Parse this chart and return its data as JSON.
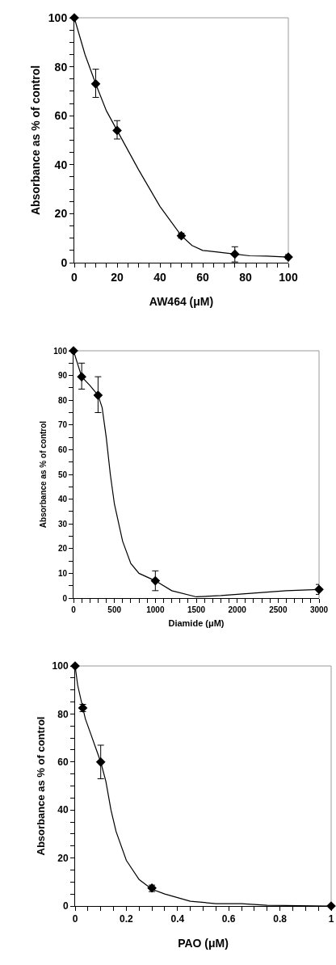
{
  "chart_data": [
    {
      "type": "scatter",
      "xlabel": "AW464 (μM)",
      "ylabel": "Absorbance as % of control",
      "grid": false,
      "xlim": [
        0,
        100
      ],
      "ylim": [
        0,
        100
      ],
      "xticks": [
        0,
        {
          "value": 5,
          "label": null
        },
        {
          "value": 10,
          "label": null
        },
        {
          "value": 15,
          "label": null
        },
        20,
        {
          "value": 25,
          "label": null
        },
        {
          "value": 30,
          "label": null
        },
        {
          "value": 35,
          "label": null
        },
        40,
        {
          "value": 45,
          "label": null
        },
        {
          "value": 50,
          "label": null
        },
        {
          "value": 55,
          "label": null
        },
        60,
        {
          "value": 65,
          "label": null
        },
        {
          "value": 70,
          "label": null
        },
        {
          "value": 75,
          "label": null
        },
        80,
        {
          "value": 85,
          "label": null
        },
        {
          "value": 90,
          "label": null
        },
        {
          "value": 95,
          "label": null
        },
        100
      ],
      "yticks": [
        0,
        {
          "value": 5,
          "label": null
        },
        {
          "value": 10,
          "label": null
        },
        {
          "value": 15,
          "label": null
        },
        20,
        {
          "value": 25,
          "label": null
        },
        {
          "value": 30,
          "label": null
        },
        {
          "value": 35,
          "label": null
        },
        40,
        {
          "value": 45,
          "label": null
        },
        {
          "value": 50,
          "label": null
        },
        {
          "value": 55,
          "label": null
        },
        60,
        {
          "value": 65,
          "label": null
        },
        {
          "value": 70,
          "label": null
        },
        {
          "value": 75,
          "label": null
        },
        80,
        {
          "value": 85,
          "label": null
        },
        {
          "value": 90,
          "label": null
        },
        {
          "value": 95,
          "label": null
        },
        100
      ],
      "series": [
        {
          "marker": "diamond",
          "color": "#000000",
          "x": [
            0,
            10,
            20,
            50,
            75,
            100
          ],
          "values": [
            100,
            73,
            54,
            11,
            3.5,
            2.3
          ],
          "errors": [
            null,
            [
              67.5,
              79
            ],
            [
              50.5,
              58
            ],
            [
              10,
              12
            ],
            [
              0.3,
              6.5
            ],
            [
              1.5,
              3.3
            ]
          ]
        },
        {
          "type": "line",
          "color": "#000000",
          "x": [
            0,
            5,
            10,
            15,
            20,
            30,
            40,
            50,
            55,
            60,
            67,
            75,
            82,
            90,
            100
          ],
          "values": [
            100,
            85,
            73,
            62,
            54,
            38,
            23,
            11,
            7,
            5,
            4.3,
            3.5,
            2.8,
            2.7,
            2.3
          ]
        }
      ]
    },
    {
      "type": "scatter",
      "xlabel": "Diamide (μM)",
      "ylabel": "Absorbance as % of control",
      "grid": false,
      "xlim": [
        0,
        3000
      ],
      "ylim": [
        0,
        100
      ],
      "xticks": [
        0,
        {
          "value": 100,
          "label": null
        },
        {
          "value": 200,
          "label": null
        },
        {
          "value": 300,
          "label": null
        },
        {
          "value": 400,
          "label": null
        },
        500,
        {
          "value": 600,
          "label": null
        },
        {
          "value": 700,
          "label": null
        },
        {
          "value": 800,
          "label": null
        },
        {
          "value": 900,
          "label": null
        },
        1000,
        {
          "value": 1100,
          "label": null
        },
        {
          "value": 1200,
          "label": null
        },
        {
          "value": 1300,
          "label": null
        },
        {
          "value": 1400,
          "label": null
        },
        1500,
        {
          "value": 1600,
          "label": null
        },
        {
          "value": 1700,
          "label": null
        },
        {
          "value": 1800,
          "label": null
        },
        {
          "value": 1900,
          "label": null
        },
        2000,
        {
          "value": 2100,
          "label": null
        },
        {
          "value": 2200,
          "label": null
        },
        {
          "value": 2300,
          "label": null
        },
        {
          "value": 2400,
          "label": null
        },
        2500,
        {
          "value": 2600,
          "label": null
        },
        {
          "value": 2700,
          "label": null
        },
        {
          "value": 2800,
          "label": null
        },
        {
          "value": 2900,
          "label": null
        },
        3000
      ],
      "yticks": [
        0,
        {
          "value": 5,
          "label": null
        },
        10,
        {
          "value": 15,
          "label": null
        },
        20,
        {
          "value": 25,
          "label": null
        },
        30,
        {
          "value": 35,
          "label": null
        },
        40,
        {
          "value": 45,
          "label": null
        },
        50,
        {
          "value": 55,
          "label": null
        },
        60,
        {
          "value": 65,
          "label": null
        },
        70,
        {
          "value": 75,
          "label": null
        },
        80,
        {
          "value": 85,
          "label": null
        },
        90,
        {
          "value": 95,
          "label": null
        },
        100
      ],
      "series": [
        {
          "marker": "diamond",
          "color": "#000000",
          "x": [
            0,
            100,
            300,
            1000,
            3000
          ],
          "values": [
            100,
            89.5,
            82,
            7,
            3.5
          ],
          "errors": [
            null,
            [
              84.5,
              95
            ],
            [
              75,
              89.5
            ],
            [
              3,
              11
            ],
            [
              1.5,
              5.5
            ]
          ]
        },
        {
          "type": "line",
          "color": "#000000",
          "x": [
            0,
            100,
            200,
            300,
            350,
            400,
            450,
            500,
            600,
            700,
            800,
            1000,
            1200,
            1500,
            1800,
            2200,
            2600,
            3000
          ],
          "values": [
            100,
            89.5,
            86,
            82,
            77,
            65,
            50,
            38,
            23,
            14,
            10,
            7,
            3,
            0.5,
            1,
            2,
            3,
            3.5
          ]
        }
      ]
    },
    {
      "type": "scatter",
      "xlabel": "PAO (μM)",
      "ylabel": "Absorbance as % of control",
      "grid": false,
      "xlim": [
        0,
        1
      ],
      "ylim": [
        0,
        100
      ],
      "xticks": [
        0,
        {
          "value": 0.05,
          "label": null
        },
        {
          "value": 0.1,
          "label": null
        },
        {
          "value": 0.15,
          "label": null
        },
        0.2,
        {
          "value": 0.25,
          "label": null
        },
        {
          "value": 0.3,
          "label": null
        },
        {
          "value": 0.35,
          "label": null
        },
        0.4,
        {
          "value": 0.45,
          "label": null
        },
        {
          "value": 0.5,
          "label": null
        },
        {
          "value": 0.55,
          "label": null
        },
        0.6,
        {
          "value": 0.65,
          "label": null
        },
        {
          "value": 0.7,
          "label": null
        },
        {
          "value": 0.75,
          "label": null
        },
        0.8,
        {
          "value": 0.85,
          "label": null
        },
        {
          "value": 0.9,
          "label": null
        },
        {
          "value": 0.95,
          "label": null
        },
        1
      ],
      "yticks": [
        0,
        {
          "value": 5,
          "label": null
        },
        {
          "value": 10,
          "label": null
        },
        {
          "value": 15,
          "label": null
        },
        20,
        {
          "value": 25,
          "label": null
        },
        {
          "value": 30,
          "label": null
        },
        {
          "value": 35,
          "label": null
        },
        40,
        {
          "value": 45,
          "label": null
        },
        {
          "value": 50,
          "label": null
        },
        {
          "value": 55,
          "label": null
        },
        60,
        {
          "value": 65,
          "label": null
        },
        {
          "value": 70,
          "label": null
        },
        {
          "value": 75,
          "label": null
        },
        80,
        {
          "value": 85,
          "label": null
        },
        {
          "value": 90,
          "label": null
        },
        {
          "value": 95,
          "label": null
        },
        100
      ],
      "series": [
        {
          "marker": "diamond",
          "color": "#000000",
          "x": [
            0,
            0.03,
            0.1,
            0.3,
            1
          ],
          "values": [
            100,
            82.5,
            60,
            7.5,
            0
          ],
          "errors": [
            null,
            [
              81,
              84
            ],
            [
              53,
              67
            ],
            [
              6,
              8.7
            ],
            null
          ]
        },
        {
          "type": "line",
          "color": "#000000",
          "x": [
            0,
            0.01,
            0.03,
            0.04,
            0.06,
            0.08,
            0.1,
            0.12,
            0.14,
            0.16,
            0.2,
            0.25,
            0.3,
            0.35,
            0.45,
            0.55,
            0.65,
            0.75,
            1
          ],
          "values": [
            100,
            92,
            82.5,
            78,
            72,
            66,
            60,
            52,
            40,
            31,
            19,
            11,
            7,
            5,
            2,
            1,
            1,
            0.3,
            0
          ]
        }
      ]
    }
  ]
}
